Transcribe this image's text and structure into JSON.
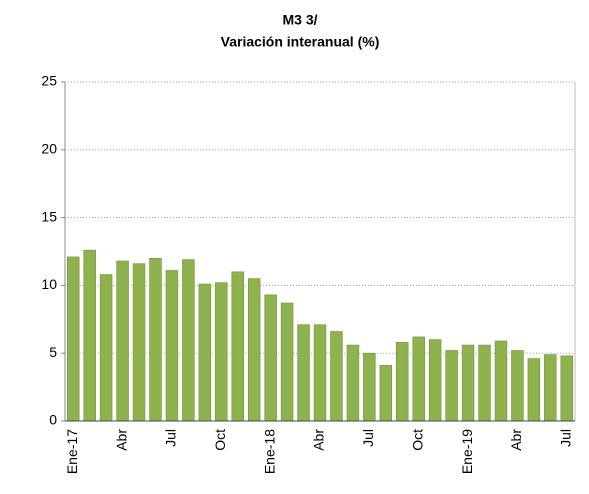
{
  "chart_data": {
    "type": "bar",
    "title": "M3 3/",
    "subtitle": "Variación interanual (%)",
    "categories": [
      "Ene-17",
      null,
      null,
      "Abr",
      null,
      null,
      "Jul",
      null,
      null,
      "Oct",
      null,
      null,
      "Ene-18",
      null,
      null,
      "Abr",
      null,
      null,
      "Jul",
      null,
      null,
      "Oct",
      null,
      null,
      "Ene-19",
      null,
      null,
      "Abr",
      null,
      null,
      "Jul"
    ],
    "values": [
      12.1,
      12.6,
      10.8,
      11.8,
      11.6,
      12.0,
      11.1,
      11.9,
      10.1,
      10.2,
      11.0,
      10.5,
      9.3,
      8.7,
      7.1,
      7.1,
      6.6,
      5.6,
      5.0,
      4.1,
      5.8,
      6.2,
      6.0,
      5.2,
      5.6,
      5.6,
      5.9,
      5.2,
      4.6,
      4.9,
      4.8
    ],
    "color": "#8fb24e",
    "ylim": [
      0,
      25
    ],
    "yticks": [
      0,
      5,
      10,
      15,
      20,
      25
    ],
    "grid": true
  }
}
